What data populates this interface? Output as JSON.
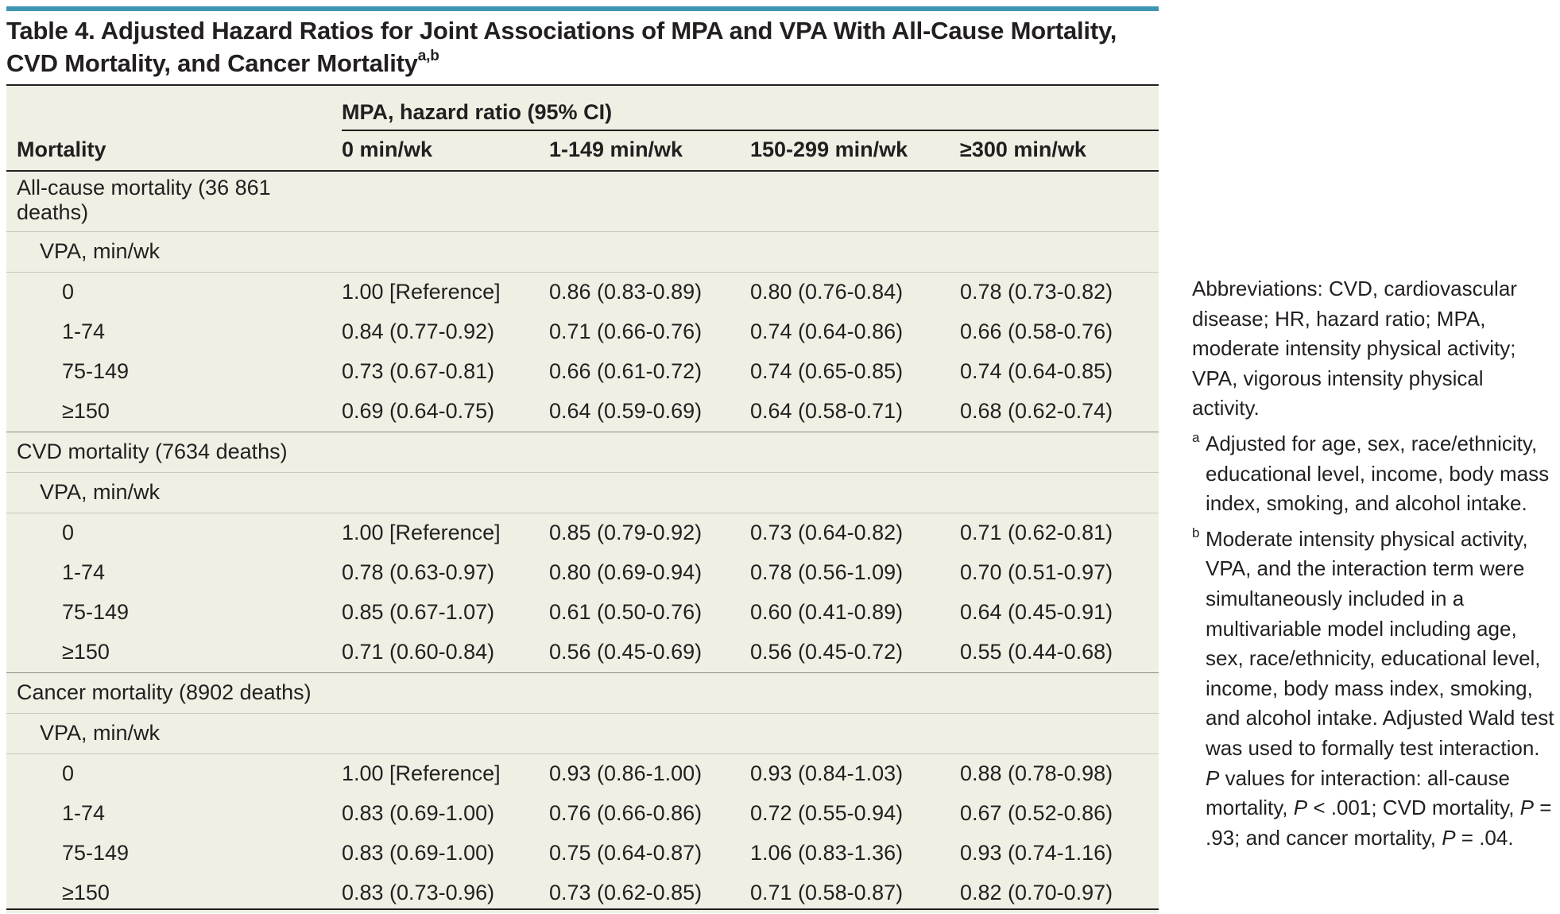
{
  "title": {
    "line1": "Table 4. Adjusted Hazard Ratios for Joint Associations of MPA and VPA With All-Cause Mortality,",
    "line2": "CVD Mortality, and Cancer Mortality",
    "sup": "a,b"
  },
  "header": {
    "spanner": "MPA, hazard ratio (95% CI)",
    "col0": "Mortality",
    "cols": [
      "0 min/wk",
      "1-149 min/wk",
      "150-299 min/wk",
      "≥300 min/wk"
    ]
  },
  "sections": [
    {
      "label": "All-cause mortality (36 861 deaths)",
      "sub": "VPA, min/wk",
      "rows": [
        {
          "level": "0",
          "vals": [
            "1.00 [Reference]",
            "0.86 (0.83-0.89)",
            "0.80 (0.76-0.84)",
            "0.78 (0.73-0.82)"
          ]
        },
        {
          "level": "1-74",
          "vals": [
            "0.84 (0.77-0.92)",
            "0.71 (0.66-0.76)",
            "0.74 (0.64-0.86)",
            "0.66 (0.58-0.76)"
          ]
        },
        {
          "level": "75-149",
          "vals": [
            "0.73 (0.67-0.81)",
            "0.66 (0.61-0.72)",
            "0.74 (0.65-0.85)",
            "0.74 (0.64-0.85)"
          ]
        },
        {
          "level": "≥150",
          "vals": [
            "0.69 (0.64-0.75)",
            "0.64 (0.59-0.69)",
            "0.64 (0.58-0.71)",
            "0.68 (0.62-0.74)"
          ]
        }
      ]
    },
    {
      "label": "CVD mortality (7634 deaths)",
      "sub": "VPA, min/wk",
      "rows": [
        {
          "level": "0",
          "vals": [
            "1.00 [Reference]",
            "0.85 (0.79-0.92)",
            "0.73 (0.64-0.82)",
            "0.71 (0.62-0.81)"
          ]
        },
        {
          "level": "1-74",
          "vals": [
            "0.78 (0.63-0.97)",
            "0.80 (0.69-0.94)",
            "0.78 (0.56-1.09)",
            "0.70 (0.51-0.97)"
          ]
        },
        {
          "level": "75-149",
          "vals": [
            "0.85 (0.67-1.07)",
            "0.61 (0.50-0.76)",
            "0.60 (0.41-0.89)",
            "0.64 (0.45-0.91)"
          ]
        },
        {
          "level": "≥150",
          "vals": [
            "0.71 (0.60-0.84)",
            "0.56 (0.45-0.69)",
            "0.56 (0.45-0.72)",
            "0.55 (0.44-0.68)"
          ]
        }
      ]
    },
    {
      "label": "Cancer mortality (8902 deaths)",
      "sub": "VPA, min/wk",
      "rows": [
        {
          "level": "0",
          "vals": [
            "1.00 [Reference]",
            "0.93 (0.86-1.00)",
            "0.93 (0.84-1.03)",
            "0.88 (0.78-0.98)"
          ]
        },
        {
          "level": "1-74",
          "vals": [
            "0.83 (0.69-1.00)",
            "0.76 (0.66-0.86)",
            "0.72 (0.55-0.94)",
            "0.67 (0.52-0.86)"
          ]
        },
        {
          "level": "75-149",
          "vals": [
            "0.83 (0.69-1.00)",
            "0.75 (0.64-0.87)",
            "1.06 (0.83-1.36)",
            "0.93 (0.74-1.16)"
          ]
        },
        {
          "level": "≥150",
          "vals": [
            "0.83 (0.73-0.96)",
            "0.73 (0.62-0.85)",
            "0.71 (0.58-0.87)",
            "0.82 (0.70-0.97)"
          ]
        }
      ]
    }
  ],
  "sidebar": {
    "abbreviations": "Abbreviations: CVD, cardiovascular disease; HR, hazard ratio; MPA, moderate intensity physical activity; VPA, vigorous intensity physical activity.",
    "footnotes": [
      {
        "mark": "a",
        "text": "Adjusted for age, sex, race/ethnicity, educational level, income, body mass index, smoking, and alcohol intake."
      },
      {
        "mark": "b",
        "text_parts": [
          "Moderate intensity physical activity, VPA, and the interaction term were simultaneously included in a multivariable model including age, sex, race/ethnicity, educational level, income, body mass index, smoking, and alcohol intake. Adjusted Wald test was used to formally test interaction. ",
          "P",
          " values for interaction: all-cause mortality, ",
          "P",
          " < .001; CVD mortality, ",
          "P",
          " = .93; and cancer mortality, ",
          "P",
          " = .04."
        ]
      }
    ]
  }
}
